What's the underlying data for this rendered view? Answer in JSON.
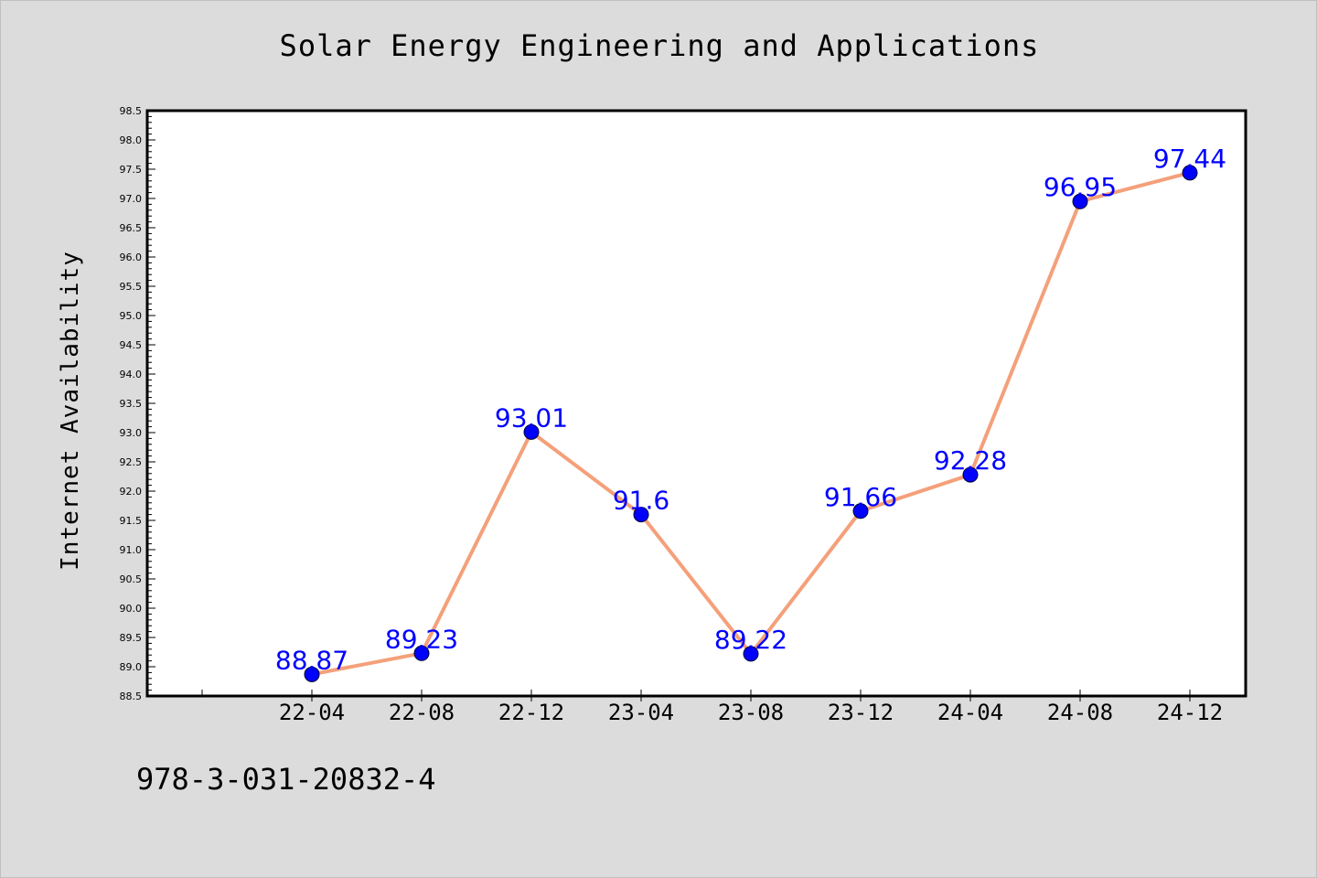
{
  "title": "Solar Energy Engineering and Applications",
  "footer_text": "978-3-031-20832-4",
  "chart_data": {
    "type": "line",
    "title": "Solar Energy Engineering and Applications",
    "xlabel": "",
    "ylabel": "Internet Availability",
    "categories": [
      "22-04",
      "22-08",
      "22-12",
      "23-04",
      "23-08",
      "23-12",
      "24-04",
      "24-08",
      "24-12"
    ],
    "series": [
      {
        "values": [
          88.87,
          89.23,
          93.01,
          91.6,
          89.22,
          91.66,
          92.28,
          96.95,
          97.44
        ],
        "labels": [
          "88.87",
          "89.23",
          "93.01",
          "91.6",
          "89.22",
          "91.66",
          "92.28",
          "96.95",
          "97.44"
        ],
        "line_color": "#f4a07a",
        "marker_color": "#0000ff"
      }
    ],
    "ylim": [
      88.5,
      98.5
    ],
    "yticks": [
      "88.5",
      "89.0",
      "89.5",
      "90.0",
      "90.5",
      "91.0",
      "91.5",
      "92.0",
      "92.5",
      "93.0",
      "93.5",
      "94.0",
      "94.5",
      "95.0",
      "95.5",
      "96.0",
      "96.5",
      "97.0",
      "97.5",
      "98.0",
      "98.5"
    ],
    "grid": false,
    "legend": "none",
    "background": "#ffffff",
    "figure_background": "#dcdcdc",
    "label_color": "#0000ff"
  }
}
